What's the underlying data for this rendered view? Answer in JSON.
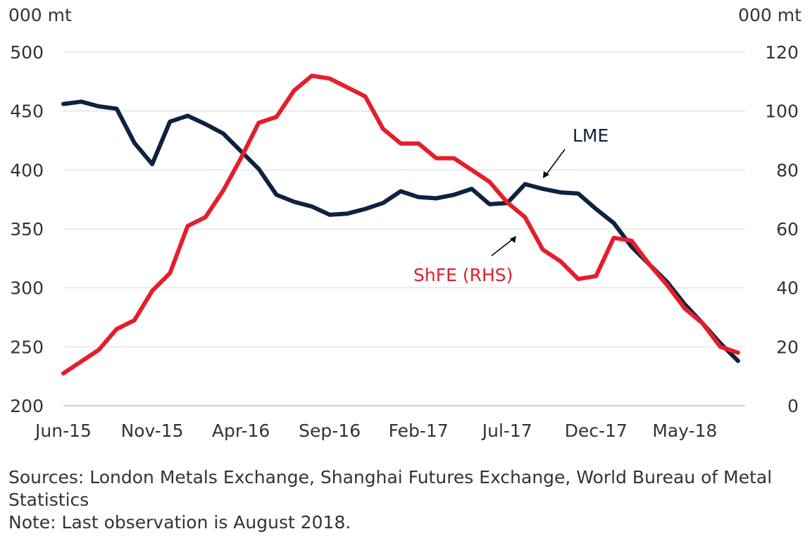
{
  "chart_data": {
    "type": "line",
    "left_axis": {
      "unit": "000 mt",
      "min": 200,
      "max": 500,
      "ticks": [
        200,
        250,
        300,
        350,
        400,
        450,
        500
      ]
    },
    "right_axis": {
      "unit": "000 mt",
      "min": 0,
      "max": 120,
      "ticks": [
        0,
        20,
        40,
        60,
        80,
        100,
        120
      ]
    },
    "x_tick_labels": [
      {
        "label": "Jun-15",
        "index": 0
      },
      {
        "label": "Nov-15",
        "index": 5
      },
      {
        "label": "Apr-16",
        "index": 10
      },
      {
        "label": "Sep-16",
        "index": 15
      },
      {
        "label": "Feb-17",
        "index": 20
      },
      {
        "label": "Jul-17",
        "index": 25
      },
      {
        "label": "Dec-17",
        "index": 30
      },
      {
        "label": "May-18",
        "index": 35
      }
    ],
    "months": [
      "Jun-15",
      "Jul-15",
      "Aug-15",
      "Sep-15",
      "Oct-15",
      "Nov-15",
      "Dec-15",
      "Jan-16",
      "Feb-16",
      "Mar-16",
      "Apr-16",
      "May-16",
      "Jun-16",
      "Jul-16",
      "Aug-16",
      "Sep-16",
      "Oct-16",
      "Nov-16",
      "Dec-16",
      "Jan-17",
      "Feb-17",
      "Mar-17",
      "Apr-17",
      "May-17",
      "Jun-17",
      "Jul-17",
      "Aug-17",
      "Sep-17",
      "Oct-17",
      "Nov-17",
      "Dec-17",
      "Jan-18",
      "Feb-18",
      "Mar-18",
      "Apr-18",
      "May-18",
      "Jun-18",
      "Jul-18",
      "Aug-18"
    ],
    "series": [
      {
        "name": "LME",
        "axis": "left",
        "color": "#0d2240",
        "values": [
          456,
          458,
          454,
          452,
          423,
          405,
          441,
          446,
          439,
          431,
          416,
          401,
          379,
          373,
          369,
          362,
          363,
          367,
          372,
          382,
          377,
          376,
          379,
          384,
          371,
          372,
          388,
          384,
          381,
          380,
          367,
          355,
          335,
          320,
          305,
          286,
          270,
          253,
          238
        ]
      },
      {
        "name": "ShFE (RHS)",
        "axis": "right",
        "color": "#e41e2b",
        "values": [
          11,
          15,
          19,
          26,
          29,
          39,
          45,
          61,
          64,
          73,
          84,
          96,
          98,
          107,
          112,
          111,
          108,
          105,
          94,
          89,
          89,
          84,
          84,
          80,
          76,
          69,
          64,
          53,
          49,
          43,
          44,
          57,
          56,
          48,
          41,
          33,
          28,
          20,
          18
        ]
      }
    ],
    "annotations": [
      {
        "text": "LME",
        "series": "LME"
      },
      {
        "text": "ShFE (RHS)",
        "series": "ShFE (RHS)"
      }
    ],
    "grid": "horizontal"
  },
  "notes": {
    "sources": "Sources: London Metals Exchange, Shanghai Futures Exchange, World Bureau of Metal Statistics",
    "note": "Note: Last observation is August 2018."
  }
}
